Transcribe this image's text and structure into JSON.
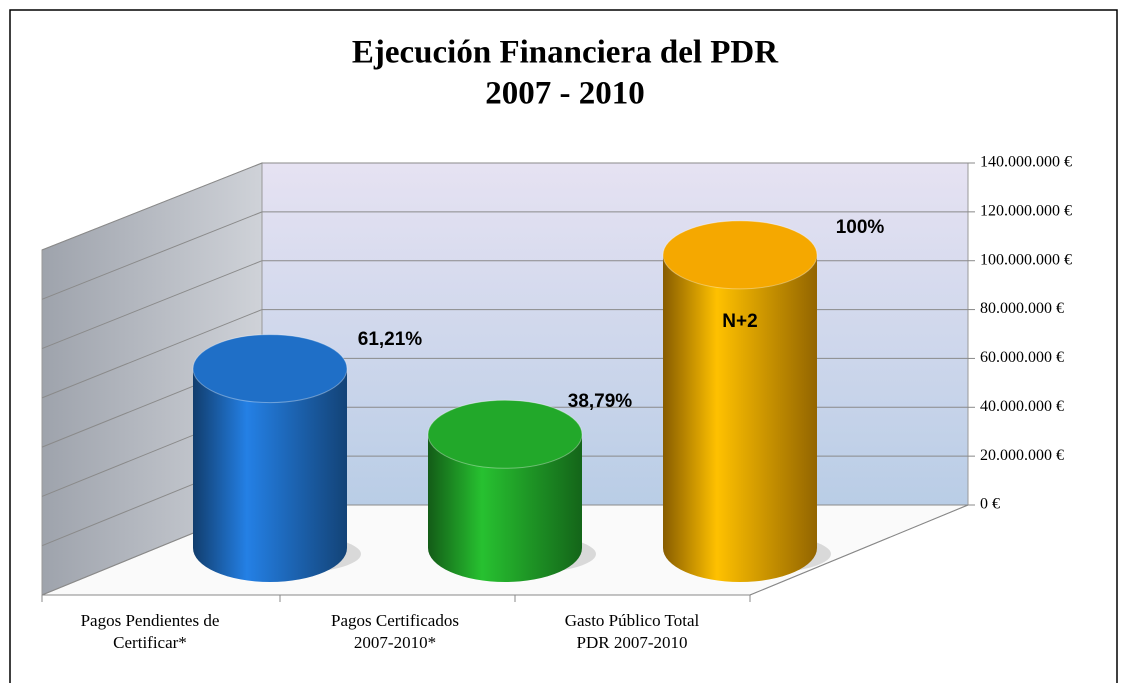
{
  "chart_data": {
    "type": "cylinder",
    "title": "Ejecución Financiera del PDR",
    "subtitle": "2007 - 2010",
    "categories": [
      "Pagos Pendientes de\nCertificar*",
      "Pagos Certificados\n2007-2010*",
      "Gasto Público Total\nPDR 2007-2010"
    ],
    "values": [
      61210000,
      38790000,
      100000000
    ],
    "colors": [
      "#1f6fc7",
      "#22a82a",
      "#f5a800"
    ],
    "ylim": [
      0,
      140000000
    ],
    "yticks": [
      {
        "value": 0,
        "label": "0 €"
      },
      {
        "value": 20000000,
        "label": "20.000.000 €"
      },
      {
        "value": 40000000,
        "label": "40.000.000 €"
      },
      {
        "value": 60000000,
        "label": "60.000.000 €"
      },
      {
        "value": 80000000,
        "label": "80.000.000 €"
      },
      {
        "value": 100000000,
        "label": "100.000.000 €"
      },
      {
        "value": 120000000,
        "label": "120.000.000 €"
      },
      {
        "value": 140000000,
        "label": "140.000.000 €"
      }
    ],
    "annotations": [
      "61,21%",
      "38,79%",
      "100%",
      "N+2"
    ],
    "grid": true
  }
}
